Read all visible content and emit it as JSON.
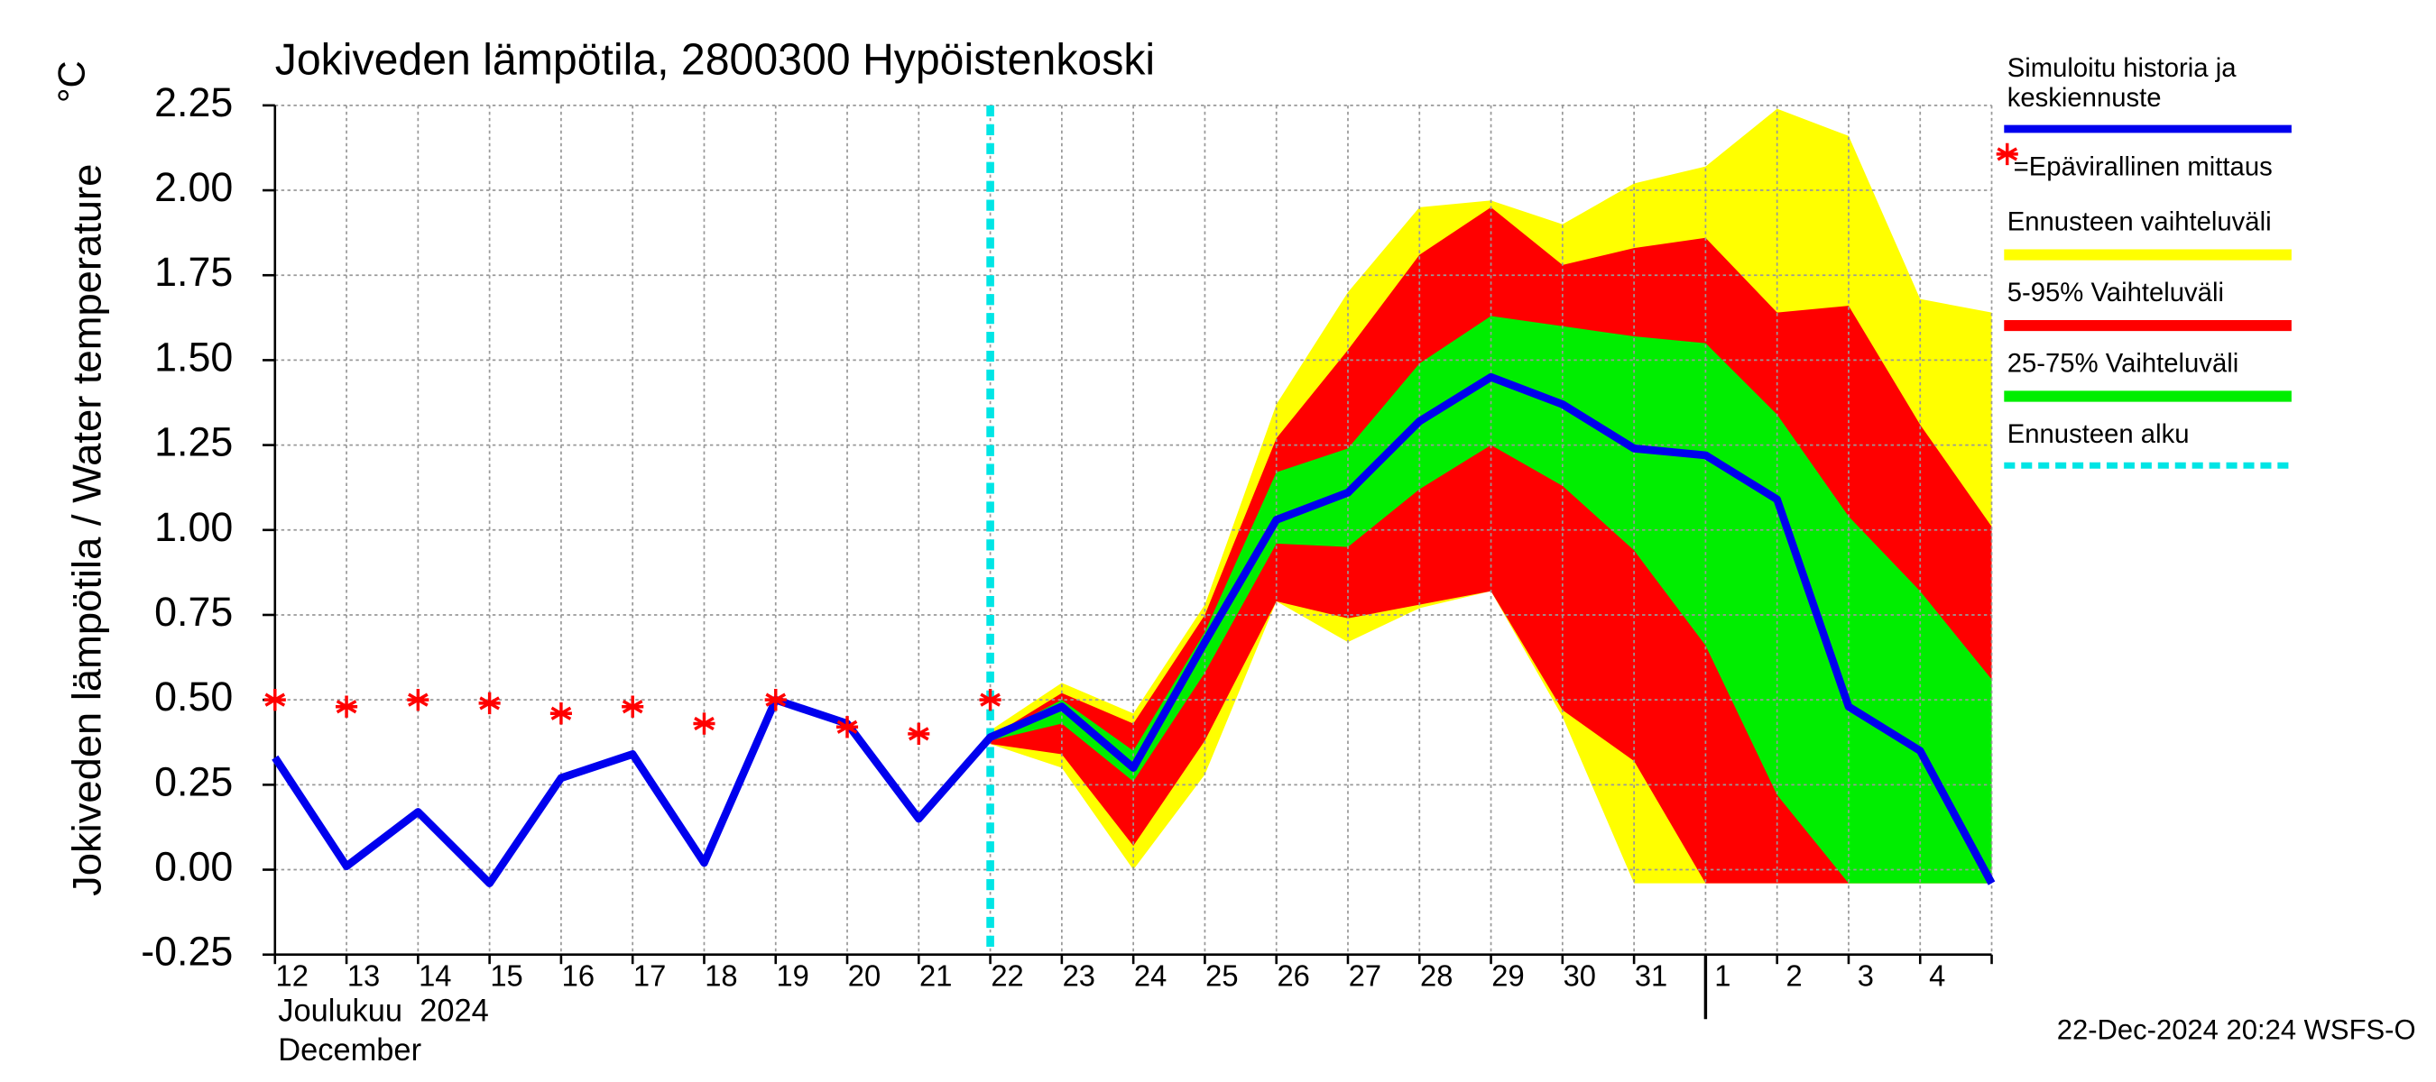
{
  "chart_data": {
    "type": "band-line",
    "title": "Jokiveden lämpötila, 2800300 Hypöistenkoski",
    "y_label": "Jokiveden lämpötila / Water temperature",
    "y_unit": "°C",
    "month_label": "Joulukuu  2024",
    "month_label_en": "December",
    "footer": "22-Dec-2024 20:24 WSFS-O",
    "categories": [
      "12",
      "13",
      "14",
      "15",
      "16",
      "17",
      "18",
      "19",
      "20",
      "21",
      "22",
      "23",
      "24",
      "25",
      "26",
      "27",
      "28",
      "29",
      "30",
      "31",
      "1",
      "2",
      "3",
      "4",
      null
    ],
    "forecast_start_index": 10,
    "month_start_index": 20,
    "ylim": [
      -0.25,
      2.25
    ],
    "yticks": [
      {
        "value": 2.25,
        "label": "2.25"
      },
      {
        "value": 2.0,
        "label": "2.00"
      },
      {
        "value": 1.75,
        "label": "1.75"
      },
      {
        "value": 1.5,
        "label": "1.50"
      },
      {
        "value": 1.25,
        "label": "1.25"
      },
      {
        "value": 1.0,
        "label": "1.00"
      },
      {
        "value": 0.75,
        "label": "0.75"
      },
      {
        "value": 0.5,
        "label": "0.50"
      },
      {
        "value": 0.25,
        "label": "0.25"
      },
      {
        "value": 0.0,
        "label": "0.00"
      },
      {
        "value": -0.25,
        "label": "-0.25"
      }
    ],
    "grid": true,
    "bands": [
      {
        "name": "Ennusteen vaihteluväli",
        "color": "#ffff00",
        "low": [
          null,
          null,
          null,
          null,
          null,
          null,
          null,
          null,
          null,
          null,
          0.37,
          0.3,
          0.0,
          0.28,
          0.79,
          0.67,
          0.77,
          0.82,
          0.45,
          -0.04,
          -0.04,
          -0.04,
          -0.04,
          -0.04,
          -0.04
        ],
        "high": [
          null,
          null,
          null,
          null,
          null,
          null,
          null,
          null,
          null,
          null,
          0.41,
          0.55,
          0.46,
          0.78,
          1.37,
          1.7,
          1.95,
          1.97,
          1.9,
          2.02,
          2.07,
          2.24,
          2.16,
          1.68,
          1.64
        ]
      },
      {
        "name": "5-95% Vaihteluväli",
        "color": "#ff0000",
        "low": [
          null,
          null,
          null,
          null,
          null,
          null,
          null,
          null,
          null,
          null,
          0.37,
          0.34,
          0.07,
          0.38,
          0.79,
          0.74,
          0.78,
          0.82,
          0.47,
          0.32,
          -0.04,
          -0.04,
          -0.04,
          -0.04,
          -0.04
        ],
        "high": [
          null,
          null,
          null,
          null,
          null,
          null,
          null,
          null,
          null,
          null,
          0.39,
          0.52,
          0.43,
          0.75,
          1.27,
          1.53,
          1.81,
          1.95,
          1.78,
          1.83,
          1.86,
          1.64,
          1.66,
          1.31,
          1.01
        ]
      },
      {
        "name": "25-75% Vaihteluväli",
        "color": "#00ee00",
        "low": [
          null,
          null,
          null,
          null,
          null,
          null,
          null,
          null,
          null,
          null,
          0.38,
          0.43,
          0.26,
          0.58,
          0.96,
          0.95,
          1.12,
          1.25,
          1.13,
          0.94,
          0.66,
          0.22,
          -0.04,
          -0.04,
          -0.04
        ],
        "high": [
          null,
          null,
          null,
          null,
          null,
          null,
          null,
          null,
          null,
          null,
          0.39,
          0.5,
          0.35,
          0.7,
          1.17,
          1.24,
          1.49,
          1.63,
          1.6,
          1.57,
          1.55,
          1.34,
          1.04,
          0.82,
          0.56
        ]
      }
    ],
    "series": [
      {
        "name": "Simuloitu historia ja keskiennuste",
        "color": "#0000ee",
        "values": [
          0.33,
          0.01,
          0.17,
          -0.04,
          0.27,
          0.34,
          0.02,
          0.5,
          0.43,
          0.15,
          0.39,
          0.48,
          0.3,
          0.67,
          1.03,
          1.11,
          1.32,
          1.45,
          1.37,
          1.24,
          1.22,
          1.09,
          0.48,
          0.35,
          -0.04
        ]
      }
    ],
    "measurements": {
      "name": "=Epävirallinen mittaus",
      "color": "#ff0000",
      "values": [
        0.5,
        0.48,
        0.5,
        0.49,
        0.46,
        0.48,
        0.43,
        0.5,
        0.42,
        0.4,
        0.5,
        null,
        null,
        null,
        null,
        null,
        null,
        null,
        null,
        null,
        null,
        null,
        null,
        null,
        null
      ]
    },
    "forecast_start": {
      "name": "Ennusteen alku",
      "color": "#00e5e5"
    }
  }
}
